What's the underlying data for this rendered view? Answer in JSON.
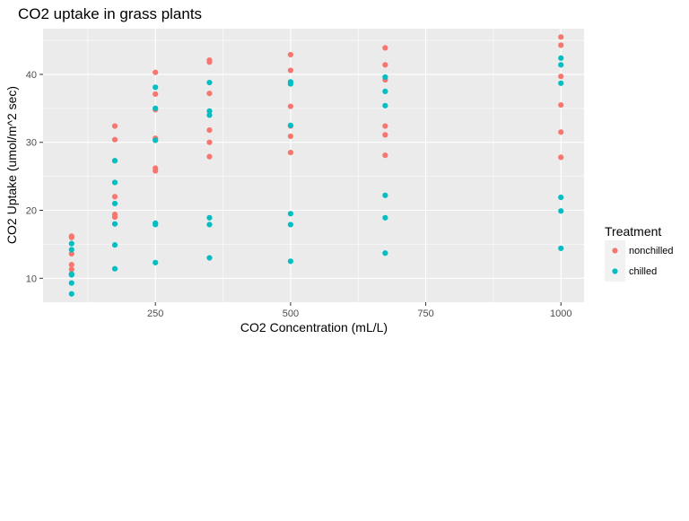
{
  "chart_data": {
    "type": "scatter",
    "title": "CO2 uptake in grass plants",
    "xlabel": "CO2 Concentration (mL/L)",
    "ylabel": "CO2 Uptake (umol/m^2 sec)",
    "xlim": [
      42.25,
      1042.75
    ],
    "ylim": [
      6.475,
      46.725
    ],
    "xticks": [
      250,
      500,
      750,
      1000
    ],
    "xtick_labels": [
      "250",
      "500",
      "750",
      "1000"
    ],
    "yticks": [
      10,
      20,
      30,
      40
    ],
    "ytick_labels": [
      "10",
      "20",
      "30",
      "40"
    ],
    "grid": true,
    "legend_position": "right",
    "legend_title": "Treatment",
    "series": [
      {
        "name": "nonchilled",
        "color": "#F8766D",
        "points": [
          [
            95,
            16.0
          ],
          [
            175,
            30.4
          ],
          [
            250,
            34.8
          ],
          [
            350,
            37.2
          ],
          [
            500,
            35.3
          ],
          [
            675,
            39.2
          ],
          [
            1000,
            39.7
          ],
          [
            95,
            13.6
          ],
          [
            175,
            27.3
          ],
          [
            250,
            37.1
          ],
          [
            350,
            41.8
          ],
          [
            500,
            40.6
          ],
          [
            675,
            41.4
          ],
          [
            1000,
            44.3
          ],
          [
            95,
            16.2
          ],
          [
            175,
            32.4
          ],
          [
            250,
            40.3
          ],
          [
            350,
            42.1
          ],
          [
            500,
            42.9
          ],
          [
            675,
            43.9
          ],
          [
            1000,
            45.5
          ],
          [
            95,
            11.3
          ],
          [
            175,
            19.4
          ],
          [
            250,
            25.8
          ],
          [
            350,
            27.9
          ],
          [
            500,
            28.5
          ],
          [
            675,
            28.1
          ],
          [
            1000,
            27.8
          ],
          [
            95,
            10.6
          ],
          [
            175,
            19.0
          ],
          [
            250,
            26.2
          ],
          [
            350,
            30.0
          ],
          [
            500,
            30.9
          ],
          [
            675,
            32.4
          ],
          [
            1000,
            31.5
          ],
          [
            95,
            12.0
          ],
          [
            175,
            22.0
          ],
          [
            250,
            30.6
          ],
          [
            350,
            31.8
          ],
          [
            500,
            32.4
          ],
          [
            675,
            31.1
          ],
          [
            1000,
            35.5
          ]
        ]
      },
      {
        "name": "chilled",
        "color": "#00BFC4",
        "points": [
          [
            95,
            14.2
          ],
          [
            175,
            24.1
          ],
          [
            250,
            30.3
          ],
          [
            350,
            34.6
          ],
          [
            500,
            32.5
          ],
          [
            675,
            35.4
          ],
          [
            1000,
            38.7
          ],
          [
            95,
            9.3
          ],
          [
            175,
            27.3
          ],
          [
            250,
            35.0
          ],
          [
            350,
            38.8
          ],
          [
            500,
            38.6
          ],
          [
            675,
            37.5
          ],
          [
            1000,
            42.4
          ],
          [
            95,
            15.1
          ],
          [
            175,
            21.0
          ],
          [
            250,
            38.1
          ],
          [
            350,
            34.0
          ],
          [
            500,
            38.9
          ],
          [
            675,
            39.6
          ],
          [
            1000,
            41.4
          ],
          [
            95,
            10.5
          ],
          [
            175,
            14.9
          ],
          [
            250,
            18.1
          ],
          [
            350,
            18.9
          ],
          [
            500,
            19.5
          ],
          [
            675,
            22.2
          ],
          [
            1000,
            21.9
          ],
          [
            95,
            7.7
          ],
          [
            175,
            11.4
          ],
          [
            250,
            12.3
          ],
          [
            350,
            13.0
          ],
          [
            500,
            12.5
          ],
          [
            675,
            13.7
          ],
          [
            1000,
            14.4
          ],
          [
            95,
            10.6
          ],
          [
            175,
            18.0
          ],
          [
            250,
            17.9
          ],
          [
            350,
            17.9
          ],
          [
            500,
            17.9
          ],
          [
            675,
            18.9
          ],
          [
            1000,
            19.9
          ]
        ]
      }
    ]
  }
}
